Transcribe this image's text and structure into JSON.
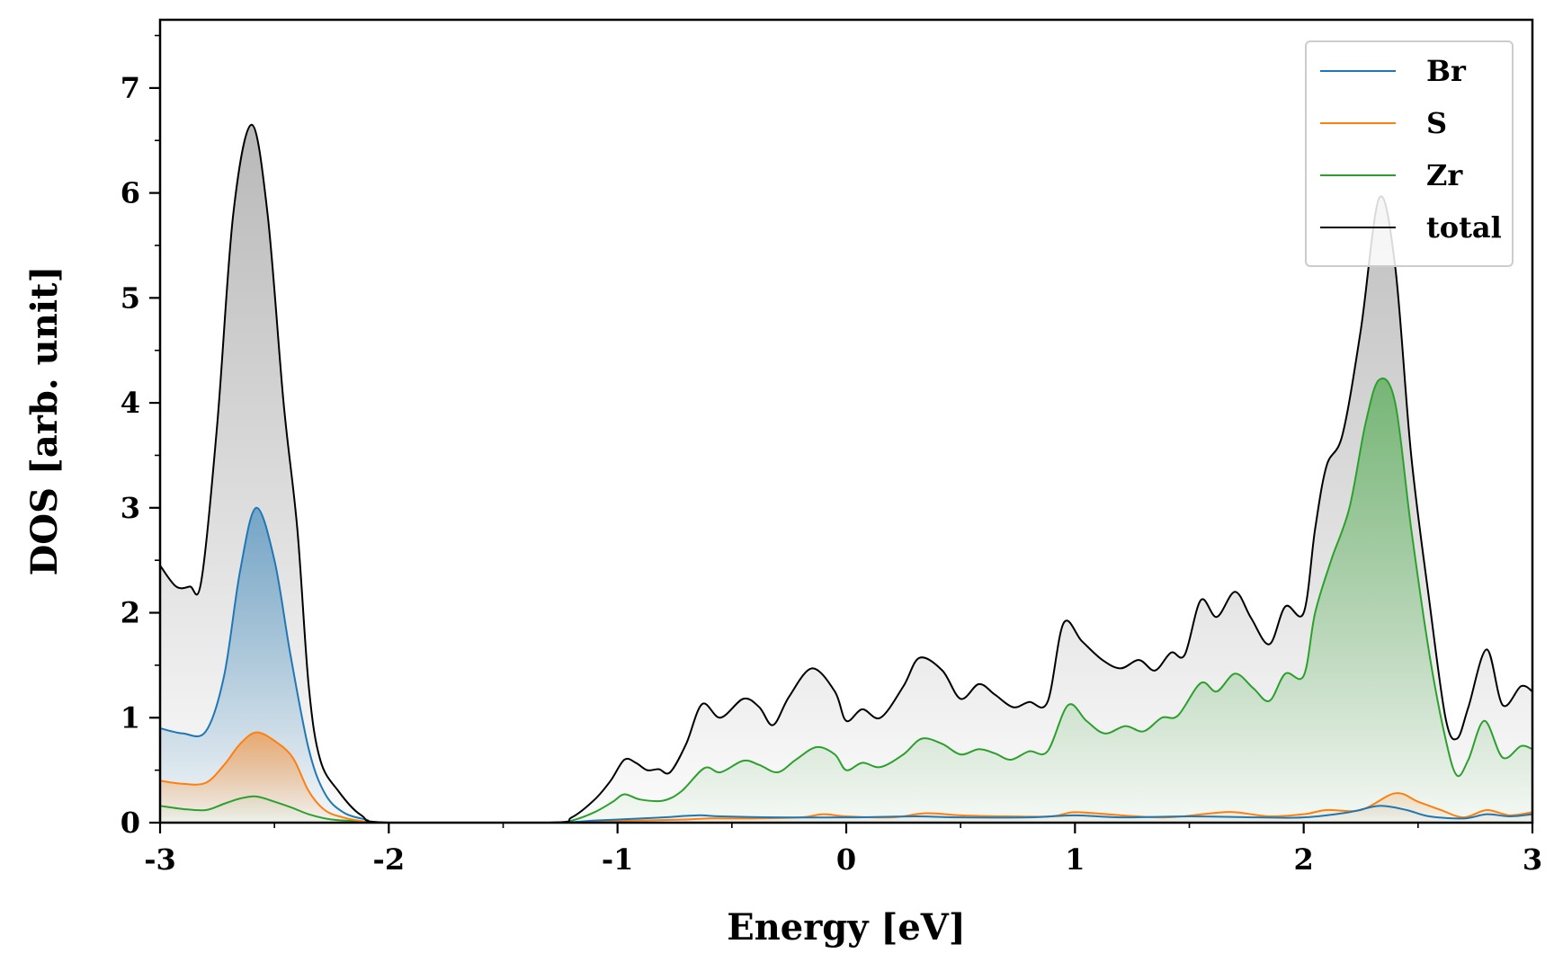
{
  "chart_data": {
    "type": "line",
    "title": "",
    "xlabel": "Energy [eV]",
    "ylabel": "DOS [arb. unit]",
    "xlim": [
      -3,
      3
    ],
    "ylim": [
      0,
      7.65
    ],
    "x_ticks": [
      -3,
      -2,
      -1,
      0,
      1,
      2,
      3
    ],
    "x_tick_labels": [
      "-3",
      "-2",
      "-1",
      "0",
      "1",
      "2",
      "3"
    ],
    "y_ticks": [
      0,
      1,
      2,
      3,
      4,
      5,
      6,
      7
    ],
    "y_tick_labels": [
      "0",
      "1",
      "2",
      "3",
      "4",
      "5",
      "6",
      "7"
    ],
    "legend_position": "top-right",
    "series": [
      {
        "name": "Br",
        "color": "#1f77b4",
        "fill": true,
        "points": [
          [
            -3.0,
            0.9
          ],
          [
            -2.9,
            0.85
          ],
          [
            -2.8,
            0.87
          ],
          [
            -2.72,
            1.4
          ],
          [
            -2.65,
            2.4
          ],
          [
            -2.58,
            3.0
          ],
          [
            -2.5,
            2.5
          ],
          [
            -2.43,
            1.6
          ],
          [
            -2.35,
            0.7
          ],
          [
            -2.28,
            0.28
          ],
          [
            -2.2,
            0.1
          ],
          [
            -2.1,
            0.03
          ],
          [
            -2.0,
            0.0
          ],
          [
            -1.3,
            0.0
          ],
          [
            -1.1,
            0.02
          ],
          [
            -0.9,
            0.04
          ],
          [
            -0.8,
            0.05
          ],
          [
            -0.65,
            0.07
          ],
          [
            -0.55,
            0.06
          ],
          [
            -0.3,
            0.05
          ],
          [
            0.0,
            0.05
          ],
          [
            0.3,
            0.06
          ],
          [
            0.5,
            0.05
          ],
          [
            0.8,
            0.05
          ],
          [
            1.0,
            0.07
          ],
          [
            1.2,
            0.05
          ],
          [
            1.5,
            0.06
          ],
          [
            1.8,
            0.05
          ],
          [
            2.0,
            0.05
          ],
          [
            2.2,
            0.1
          ],
          [
            2.33,
            0.16
          ],
          [
            2.45,
            0.12
          ],
          [
            2.55,
            0.06
          ],
          [
            2.7,
            0.04
          ],
          [
            2.8,
            0.08
          ],
          [
            2.9,
            0.06
          ],
          [
            3.0,
            0.08
          ]
        ]
      },
      {
        "name": "S",
        "color": "#ff7f0e",
        "fill": true,
        "points": [
          [
            -3.0,
            0.4
          ],
          [
            -2.9,
            0.37
          ],
          [
            -2.8,
            0.38
          ],
          [
            -2.72,
            0.55
          ],
          [
            -2.65,
            0.75
          ],
          [
            -2.58,
            0.86
          ],
          [
            -2.5,
            0.78
          ],
          [
            -2.42,
            0.62
          ],
          [
            -2.35,
            0.3
          ],
          [
            -2.28,
            0.12
          ],
          [
            -2.2,
            0.05
          ],
          [
            -2.1,
            0.01
          ],
          [
            -2.0,
            0.0
          ],
          [
            -1.3,
            0.0
          ],
          [
            -1.1,
            0.01
          ],
          [
            -0.9,
            0.02
          ],
          [
            -0.7,
            0.03
          ],
          [
            -0.6,
            0.04
          ],
          [
            -0.4,
            0.04
          ],
          [
            -0.2,
            0.05
          ],
          [
            -0.1,
            0.08
          ],
          [
            0.0,
            0.06
          ],
          [
            0.2,
            0.05
          ],
          [
            0.35,
            0.09
          ],
          [
            0.5,
            0.07
          ],
          [
            0.7,
            0.06
          ],
          [
            0.9,
            0.06
          ],
          [
            1.0,
            0.1
          ],
          [
            1.2,
            0.07
          ],
          [
            1.4,
            0.05
          ],
          [
            1.6,
            0.09
          ],
          [
            1.7,
            0.1
          ],
          [
            1.85,
            0.06
          ],
          [
            2.0,
            0.08
          ],
          [
            2.1,
            0.12
          ],
          [
            2.25,
            0.12
          ],
          [
            2.4,
            0.28
          ],
          [
            2.5,
            0.2
          ],
          [
            2.6,
            0.12
          ],
          [
            2.7,
            0.05
          ],
          [
            2.8,
            0.12
          ],
          [
            2.9,
            0.07
          ],
          [
            3.0,
            0.1
          ]
        ]
      },
      {
        "name": "Zr",
        "color": "#2ca02c",
        "fill": true,
        "points": [
          [
            -3.0,
            0.16
          ],
          [
            -2.9,
            0.13
          ],
          [
            -2.8,
            0.12
          ],
          [
            -2.72,
            0.18
          ],
          [
            -2.65,
            0.23
          ],
          [
            -2.58,
            0.25
          ],
          [
            -2.5,
            0.2
          ],
          [
            -2.42,
            0.14
          ],
          [
            -2.35,
            0.08
          ],
          [
            -2.25,
            0.03
          ],
          [
            -2.1,
            0.01
          ],
          [
            -2.0,
            0.0
          ],
          [
            -1.3,
            0.0
          ],
          [
            -1.2,
            0.02
          ],
          [
            -1.1,
            0.1
          ],
          [
            -1.02,
            0.2
          ],
          [
            -0.97,
            0.27
          ],
          [
            -0.9,
            0.22
          ],
          [
            -0.8,
            0.21
          ],
          [
            -0.72,
            0.3
          ],
          [
            -0.62,
            0.52
          ],
          [
            -0.55,
            0.48
          ],
          [
            -0.45,
            0.59
          ],
          [
            -0.38,
            0.55
          ],
          [
            -0.3,
            0.48
          ],
          [
            -0.22,
            0.6
          ],
          [
            -0.13,
            0.72
          ],
          [
            -0.05,
            0.65
          ],
          [
            0.0,
            0.5
          ],
          [
            0.07,
            0.57
          ],
          [
            0.15,
            0.53
          ],
          [
            0.25,
            0.65
          ],
          [
            0.33,
            0.8
          ],
          [
            0.42,
            0.75
          ],
          [
            0.5,
            0.65
          ],
          [
            0.58,
            0.7
          ],
          [
            0.65,
            0.66
          ],
          [
            0.72,
            0.6
          ],
          [
            0.8,
            0.68
          ],
          [
            0.88,
            0.68
          ],
          [
            0.97,
            1.12
          ],
          [
            1.05,
            0.97
          ],
          [
            1.13,
            0.85
          ],
          [
            1.22,
            0.92
          ],
          [
            1.3,
            0.87
          ],
          [
            1.38,
            1.0
          ],
          [
            1.45,
            1.02
          ],
          [
            1.55,
            1.33
          ],
          [
            1.62,
            1.25
          ],
          [
            1.7,
            1.42
          ],
          [
            1.78,
            1.28
          ],
          [
            1.85,
            1.16
          ],
          [
            1.92,
            1.42
          ],
          [
            2.0,
            1.4
          ],
          [
            2.05,
            2.0
          ],
          [
            2.12,
            2.5
          ],
          [
            2.2,
            3.0
          ],
          [
            2.27,
            3.8
          ],
          [
            2.33,
            4.22
          ],
          [
            2.4,
            4.0
          ],
          [
            2.47,
            2.8
          ],
          [
            2.55,
            1.6
          ],
          [
            2.62,
            0.8
          ],
          [
            2.67,
            0.45
          ],
          [
            2.72,
            0.6
          ],
          [
            2.79,
            0.97
          ],
          [
            2.87,
            0.62
          ],
          [
            2.95,
            0.73
          ],
          [
            3.0,
            0.7
          ]
        ]
      },
      {
        "name": "total",
        "color": "#000000",
        "fill": true,
        "points": [
          [
            -3.0,
            2.45
          ],
          [
            -2.93,
            2.25
          ],
          [
            -2.87,
            2.25
          ],
          [
            -2.82,
            2.3
          ],
          [
            -2.75,
            3.8
          ],
          [
            -2.68,
            5.8
          ],
          [
            -2.6,
            6.65
          ],
          [
            -2.53,
            5.8
          ],
          [
            -2.46,
            4.0
          ],
          [
            -2.4,
            2.8
          ],
          [
            -2.35,
            1.3
          ],
          [
            -2.3,
            0.6
          ],
          [
            -2.22,
            0.3
          ],
          [
            -2.12,
            0.07
          ],
          [
            -2.0,
            0.0
          ],
          [
            -1.3,
            0.0
          ],
          [
            -1.2,
            0.05
          ],
          [
            -1.1,
            0.22
          ],
          [
            -1.03,
            0.4
          ],
          [
            -0.97,
            0.6
          ],
          [
            -0.92,
            0.57
          ],
          [
            -0.87,
            0.5
          ],
          [
            -0.82,
            0.51
          ],
          [
            -0.77,
            0.48
          ],
          [
            -0.7,
            0.75
          ],
          [
            -0.63,
            1.13
          ],
          [
            -0.55,
            1.0
          ],
          [
            -0.45,
            1.18
          ],
          [
            -0.38,
            1.1
          ],
          [
            -0.32,
            0.93
          ],
          [
            -0.25,
            1.2
          ],
          [
            -0.15,
            1.47
          ],
          [
            -0.05,
            1.25
          ],
          [
            0.0,
            0.97
          ],
          [
            0.07,
            1.08
          ],
          [
            0.15,
            1.0
          ],
          [
            0.25,
            1.3
          ],
          [
            0.32,
            1.57
          ],
          [
            0.42,
            1.45
          ],
          [
            0.5,
            1.18
          ],
          [
            0.58,
            1.32
          ],
          [
            0.65,
            1.22
          ],
          [
            0.73,
            1.1
          ],
          [
            0.8,
            1.15
          ],
          [
            0.88,
            1.15
          ],
          [
            0.95,
            1.9
          ],
          [
            1.03,
            1.73
          ],
          [
            1.12,
            1.55
          ],
          [
            1.2,
            1.47
          ],
          [
            1.28,
            1.55
          ],
          [
            1.35,
            1.45
          ],
          [
            1.42,
            1.62
          ],
          [
            1.48,
            1.6
          ],
          [
            1.55,
            2.12
          ],
          [
            1.62,
            1.96
          ],
          [
            1.7,
            2.2
          ],
          [
            1.77,
            1.95
          ],
          [
            1.85,
            1.7
          ],
          [
            1.92,
            2.06
          ],
          [
            2.0,
            2.0
          ],
          [
            2.05,
            2.8
          ],
          [
            2.1,
            3.4
          ],
          [
            2.17,
            3.7
          ],
          [
            2.25,
            4.7
          ],
          [
            2.33,
            5.95
          ],
          [
            2.4,
            5.3
          ],
          [
            2.47,
            3.5
          ],
          [
            2.55,
            2.1
          ],
          [
            2.62,
            1.0
          ],
          [
            2.67,
            0.8
          ],
          [
            2.72,
            1.1
          ],
          [
            2.8,
            1.65
          ],
          [
            2.87,
            1.12
          ],
          [
            2.95,
            1.3
          ],
          [
            3.0,
            1.25
          ]
        ]
      }
    ]
  }
}
